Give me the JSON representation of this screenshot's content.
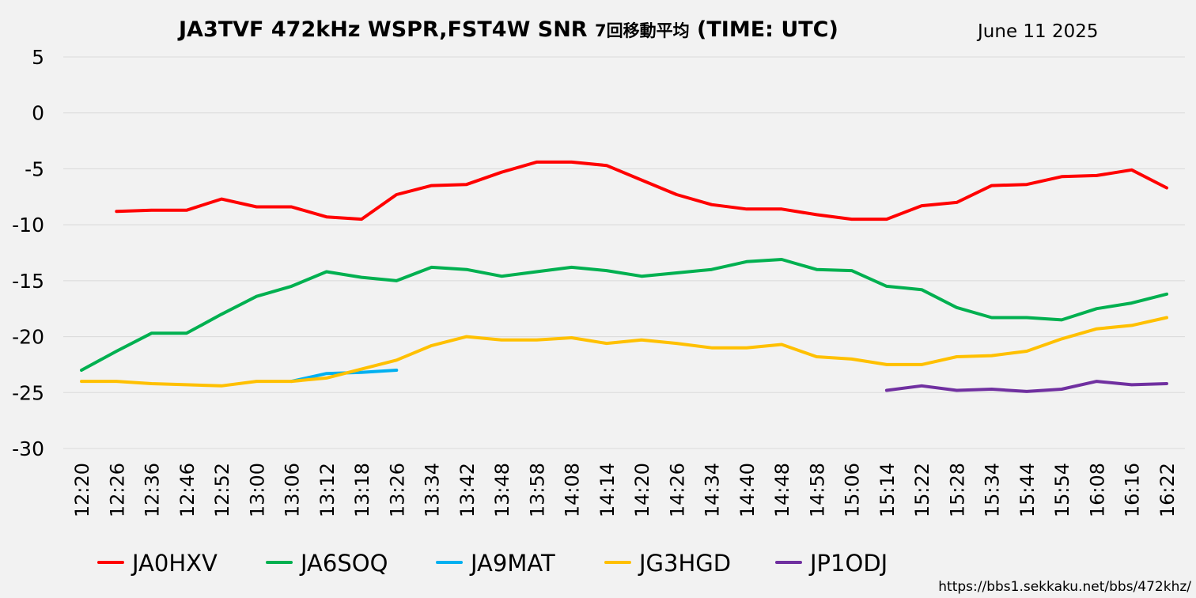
{
  "chart_data": {
    "type": "line",
    "title": "JA3TVF 472kHz WSPR,FST4W SNR",
    "title_jp": "7回移動平均",
    "title_suffix": "(TIME: UTC)",
    "date": "June 11 2025",
    "xlabel": "",
    "ylabel": "",
    "ylim": [
      -30,
      5
    ],
    "yticks": [
      5,
      0,
      -5,
      -10,
      -15,
      -20,
      -25,
      -30
    ],
    "grid": true,
    "legend_position": "bottom",
    "categories": [
      "12:20",
      "12:26",
      "12:36",
      "12:46",
      "12:52",
      "13:00",
      "13:06",
      "13:12",
      "13:18",
      "13:26",
      "13:34",
      "13:42",
      "13:48",
      "13:58",
      "14:08",
      "14:14",
      "14:20",
      "14:26",
      "14:34",
      "14:40",
      "14:48",
      "14:58",
      "15:06",
      "15:14",
      "15:22",
      "15:28",
      "15:34",
      "15:44",
      "15:54",
      "16:08",
      "16:16",
      "16:22"
    ],
    "series": [
      {
        "name": "JA0HXV",
        "color": "#ff0000",
        "values": [
          null,
          -8.8,
          -8.7,
          -8.7,
          -7.7,
          -8.4,
          -8.4,
          -9.3,
          -9.5,
          -7.3,
          -6.5,
          -6.4,
          -5.3,
          -4.4,
          -4.4,
          -4.7,
          -6.0,
          -7.3,
          -8.2,
          -8.6,
          -8.6,
          -9.1,
          -9.5,
          -9.5,
          -8.3,
          -8.0,
          -6.5,
          -6.4,
          -5.7,
          -5.6,
          -5.1,
          -6.7
        ]
      },
      {
        "name": "JA6SOQ",
        "color": "#00b050",
        "values": [
          -23.0,
          -21.3,
          -19.7,
          -19.7,
          -18.0,
          -16.4,
          -15.5,
          -14.2,
          -14.7,
          -15.0,
          -13.8,
          -14.0,
          -14.6,
          -14.2,
          -13.8,
          -14.1,
          -14.6,
          -14.3,
          -14.0,
          -13.3,
          -13.1,
          -14.0,
          -14.1,
          -15.5,
          -15.8,
          -17.4,
          -18.3,
          -18.3,
          -18.5,
          -17.5,
          -17.0,
          -16.2
        ]
      },
      {
        "name": "JA9MAT",
        "color": "#00b0f0",
        "values": [
          null,
          null,
          null,
          null,
          null,
          null,
          -24.0,
          -23.3,
          -23.2,
          -23.0,
          null,
          null,
          null,
          null,
          null,
          null,
          null,
          null,
          null,
          null,
          null,
          null,
          null,
          null,
          null,
          null,
          null,
          null,
          null,
          null,
          null,
          null
        ]
      },
      {
        "name": "JG3HGD",
        "color": "#ffc000",
        "values": [
          -24.0,
          -24.0,
          -24.2,
          -24.3,
          -24.4,
          -24.0,
          -24.0,
          -23.7,
          -22.9,
          -22.1,
          -20.8,
          -20.0,
          -20.3,
          -20.3,
          -20.1,
          -20.6,
          -20.3,
          -20.6,
          -21.0,
          -21.0,
          -20.7,
          -21.8,
          -22.0,
          -22.5,
          -22.5,
          -21.8,
          -21.7,
          -21.3,
          -20.2,
          -19.3,
          -19.0,
          -18.3
        ]
      },
      {
        "name": "JP1ODJ",
        "color": "#7030a0",
        "values": [
          null,
          null,
          null,
          null,
          null,
          null,
          null,
          null,
          null,
          null,
          null,
          null,
          null,
          null,
          null,
          null,
          null,
          null,
          null,
          null,
          null,
          null,
          null,
          -24.8,
          -24.4,
          -24.8,
          -24.7,
          -24.9,
          -24.7,
          -24.0,
          -24.3,
          -24.2
        ]
      }
    ]
  },
  "footer": {
    "url": "https://bbs1.sekkaku.net/bbs/472khz/"
  }
}
